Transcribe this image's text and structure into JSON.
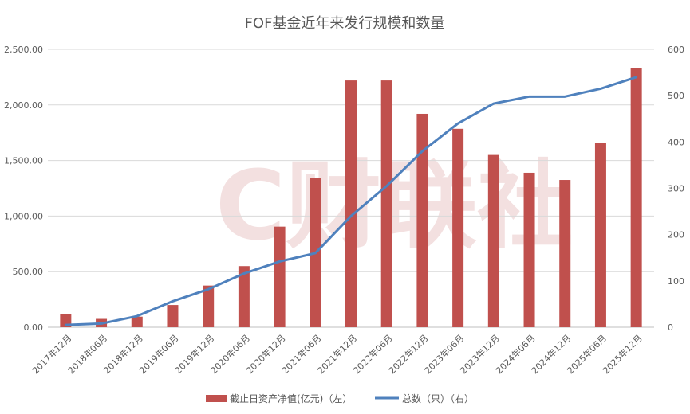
{
  "chart_data": {
    "type": "bar",
    "title": "FOF基金近年来发行规模和数量",
    "watermark": "C财联社",
    "categories": [
      "2017年12月",
      "2018年06月",
      "2018年12月",
      "2019年06月",
      "2019年12月",
      "2020年06月",
      "2020年12月",
      "2021年06月",
      "2021年12月",
      "2022年06月",
      "2022年12月",
      "2023年06月",
      "2023年12月",
      "2024年06月",
      "2024年12月",
      "2025年06月",
      "2025年12月"
    ],
    "y_left": {
      "ylim": [
        0,
        2500
      ],
      "ticks": [
        0,
        500,
        1000,
        1500,
        2000,
        2500
      ],
      "tick_labels": [
        "0.00",
        "500.00",
        "1,000.00",
        "1,500.00",
        "2,000.00",
        "2,500.00"
      ]
    },
    "y_right": {
      "ylim": [
        0,
        600
      ],
      "ticks": [
        0,
        100,
        200,
        300,
        400,
        500,
        600
      ],
      "tick_labels": [
        "0",
        "100",
        "200",
        "300",
        "400",
        "500",
        "600"
      ]
    },
    "series": [
      {
        "name": "截止日资产净值(亿元)（左）",
        "type": "bar",
        "axis": "left",
        "color": "#c0504d",
        "values": [
          120,
          75,
          95,
          200,
          375,
          550,
          905,
          1340,
          2220,
          2220,
          1920,
          1785,
          1550,
          1390,
          1325,
          1660,
          2330
        ]
      },
      {
        "name": "总数（只）（右）",
        "type": "line",
        "axis": "right",
        "color": "#4f81bd",
        "values": [
          5,
          8,
          24,
          56,
          82,
          116,
          142,
          160,
          240,
          305,
          380,
          440,
          483,
          498,
          498,
          515,
          540
        ]
      }
    ],
    "grid": true,
    "legend_position": "bottom"
  }
}
